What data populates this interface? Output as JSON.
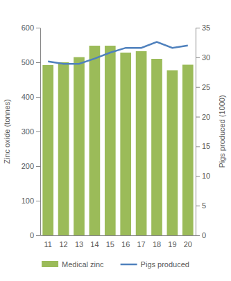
{
  "chart_data": {
    "type": "bar",
    "y_label": "Zinc oxide (tonnes)",
    "y2_label": "Pigs produced (1000)",
    "categories": [
      "11",
      "12",
      "13",
      "14",
      "15",
      "16",
      "17",
      "18",
      "19",
      "20"
    ],
    "series": [
      {
        "name": "Medical zinc",
        "type": "bar",
        "color": "#9bbb59",
        "values": [
          492,
          500,
          515,
          548,
          548,
          528,
          532,
          510,
          477,
          493
        ]
      },
      {
        "name": "Pigs produced",
        "type": "line",
        "axis": "y2",
        "color": "#4f81bd",
        "values": [
          29.3,
          28.9,
          28.9,
          29.8,
          30.8,
          31.6,
          31.6,
          32.6,
          31.6,
          32.0
        ]
      }
    ],
    "ylim": [
      0,
      600
    ],
    "yticks": [
      0,
      100,
      200,
      300,
      400,
      500,
      600
    ],
    "y2lim": [
      0,
      35
    ],
    "y2ticks": [
      0,
      5,
      10,
      15,
      20,
      25,
      30,
      35
    ],
    "grid": false,
    "legend": "bottom"
  }
}
